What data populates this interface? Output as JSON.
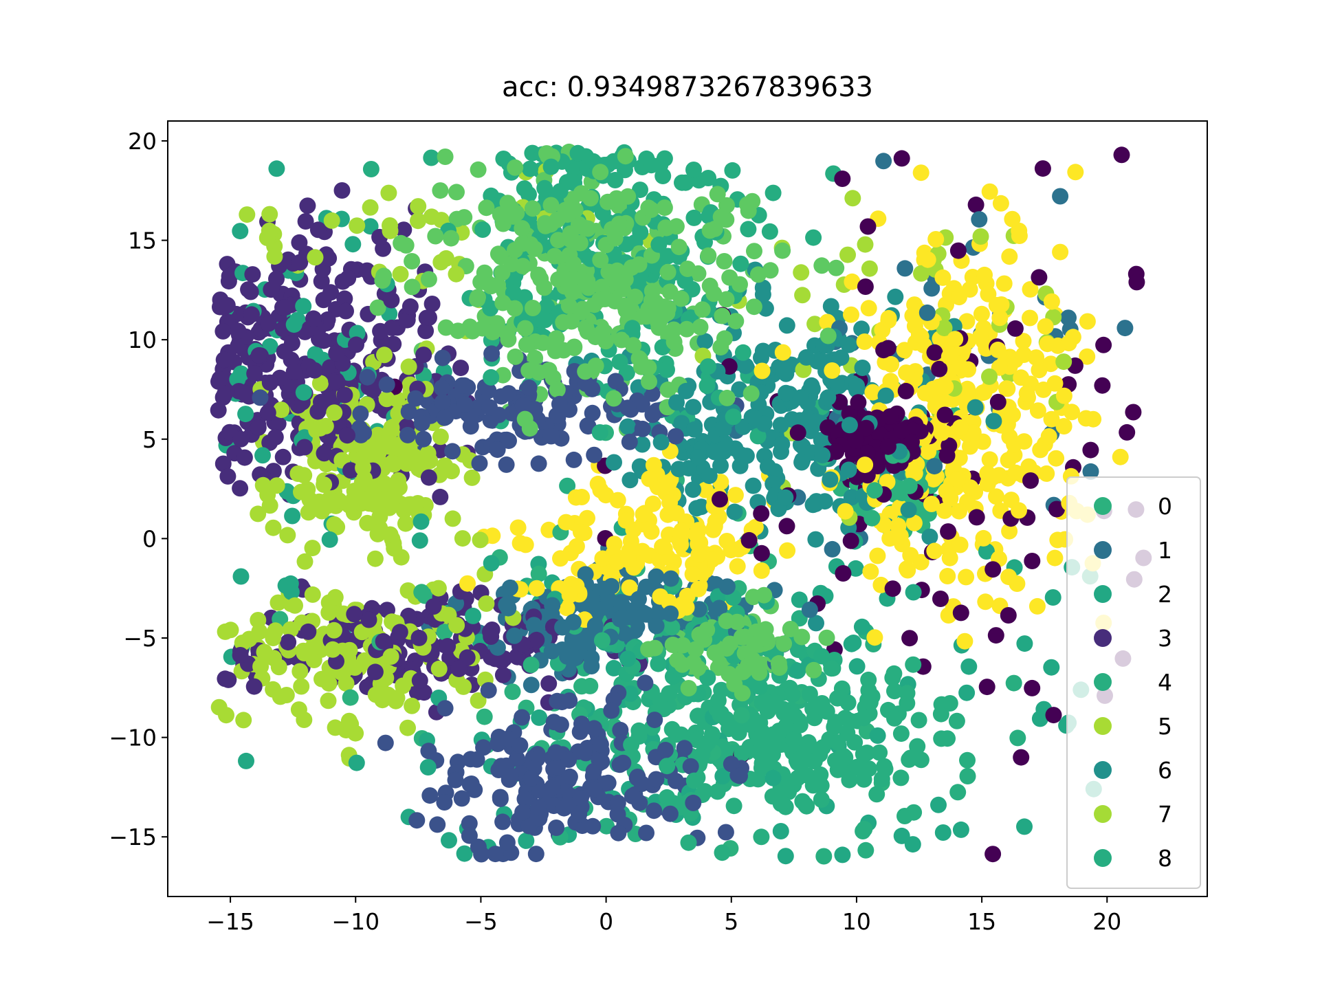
{
  "chart_data": {
    "type": "scatter",
    "title": "acc: 0.9349873267839633",
    "xlabel": "",
    "ylabel": "",
    "xlim": [
      -17.5,
      24
    ],
    "ylim": [
      -18,
      21
    ],
    "x_ticks": [
      -15,
      -10,
      -5,
      0,
      5,
      10,
      15,
      20
    ],
    "y_ticks": [
      -15,
      -10,
      -5,
      0,
      5,
      10,
      15,
      20
    ],
    "x_tick_labels": [
      "−15",
      "−10",
      "−5",
      "0",
      "5",
      "10",
      "15",
      "20"
    ],
    "y_tick_labels": [
      "−15",
      "−10",
      "−5",
      "0",
      "5",
      "10",
      "15",
      "20"
    ],
    "grid": false,
    "legend_position": "lower-right",
    "series": [
      {
        "name": "0",
        "color": "#2cb17e",
        "clusters": [
          {
            "cx": 11.5,
            "cy": 3.5,
            "sx": 1.2,
            "sy": 1.6,
            "n": 90
          },
          {
            "cx": 0.0,
            "cy": -5.0,
            "sx": 6.0,
            "sy": 4.0,
            "n": 60
          }
        ]
      },
      {
        "name": "1",
        "color": "#2c728e",
        "clusters": [
          {
            "cx": 0.5,
            "cy": -4.0,
            "sx": 3.0,
            "sy": 1.3,
            "n": 200
          },
          {
            "cx": 13.0,
            "cy": 8.0,
            "sx": 4.0,
            "sy": 4.5,
            "n": 40
          }
        ]
      },
      {
        "name": "2",
        "color": "#22a884",
        "clusters": [
          {
            "cx": 4.0,
            "cy": -8.0,
            "sx": 8.0,
            "sy": 5.0,
            "n": 120
          },
          {
            "cx": -12.0,
            "cy": 8.0,
            "sx": 2.5,
            "sy": 5.0,
            "n": 60
          }
        ]
      },
      {
        "name": "3",
        "color": "#472d7b",
        "clusters": [
          {
            "cx": -11.5,
            "cy": 9.0,
            "sx": 2.8,
            "sy": 3.0,
            "n": 280
          },
          {
            "cx": -8.0,
            "cy": -5.5,
            "sx": 3.2,
            "sy": 1.2,
            "n": 170
          }
        ]
      },
      {
        "name": "4",
        "color": "#28ae80",
        "clusters": [
          {
            "cx": 6.5,
            "cy": -10.0,
            "sx": 3.8,
            "sy": 2.2,
            "n": 300
          }
        ]
      },
      {
        "name": "5",
        "color": "#a8db34",
        "clusters": [
          {
            "cx": -9.5,
            "cy": 3.5,
            "sx": 1.9,
            "sy": 2.2,
            "n": 220
          },
          {
            "cx": -10.0,
            "cy": -6.0,
            "sx": 2.8,
            "sy": 1.8,
            "n": 140
          }
        ]
      },
      {
        "name": "6",
        "color": "#21918c",
        "clusters": [
          {
            "cx": 6.5,
            "cy": 6.0,
            "sx": 3.5,
            "sy": 3.2,
            "n": 260
          }
        ]
      },
      {
        "name": "7",
        "color": "#a5db36",
        "clusters": [
          {
            "cx": -8.0,
            "cy": 14.5,
            "sx": 4.5,
            "sy": 1.5,
            "n": 40
          },
          {
            "cx": 12.0,
            "cy": 11.0,
            "sx": 3.5,
            "sy": 4.0,
            "n": 40
          }
        ]
      },
      {
        "name": "8",
        "color": "#26ad81",
        "clusters": [
          {
            "cx": 0.0,
            "cy": 14.0,
            "sx": 3.2,
            "sy": 3.5,
            "n": 260
          },
          {
            "cx": 5.0,
            "cy": -5.5,
            "sx": 1.8,
            "sy": 1.2,
            "n": 60
          }
        ]
      }
    ],
    "extra_points": [
      {
        "color": "#fde725",
        "clusters": [
          {
            "cx": 14.0,
            "cy": 6.0,
            "sx": 2.5,
            "sy": 4.5,
            "n": 320
          },
          {
            "cx": 2.0,
            "cy": 0.0,
            "sx": 2.5,
            "sy": 1.8,
            "n": 140
          }
        ]
      },
      {
        "color": "#440154",
        "clusters": [
          {
            "cx": 11.0,
            "cy": 5.0,
            "sx": 1.2,
            "sy": 0.8,
            "n": 110
          },
          {
            "cx": 13.0,
            "cy": 3.0,
            "sx": 6.0,
            "sy": 6.0,
            "n": 90
          }
        ]
      },
      {
        "color": "#3b528b",
        "clusters": [
          {
            "cx": -3.5,
            "cy": 6.5,
            "sx": 3.0,
            "sy": 1.2,
            "n": 150
          },
          {
            "cx": -1.5,
            "cy": -12.0,
            "sx": 2.8,
            "sy": 1.8,
            "n": 170
          }
        ]
      },
      {
        "color": "#5ec962",
        "clusters": [
          {
            "cx": -0.5,
            "cy": 13.0,
            "sx": 3.5,
            "sy": 3.0,
            "n": 300
          },
          {
            "cx": 5.5,
            "cy": -5.5,
            "sx": 1.4,
            "sy": 1.0,
            "n": 70
          }
        ]
      }
    ]
  }
}
